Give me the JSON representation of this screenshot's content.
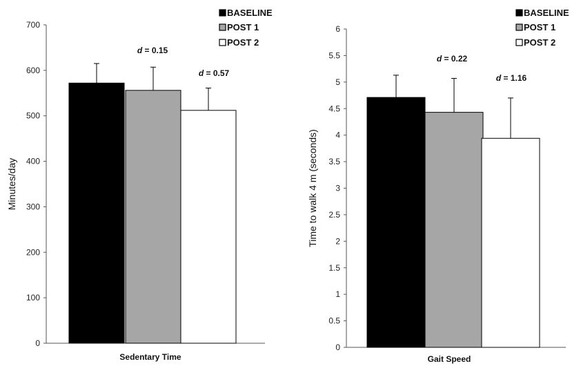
{
  "chart_data": [
    {
      "type": "bar",
      "categories": [
        "BASELINE",
        "POST 1",
        "POST 2"
      ],
      "values": [
        572,
        556,
        512
      ],
      "errors": [
        43,
        51,
        49
      ],
      "colors": [
        "#000000",
        "#a6a6a6",
        "#ffffff"
      ],
      "xlabel": "Sedentary Time",
      "ylabel": "Minutes/day",
      "ylim": [
        0,
        700
      ],
      "yticks": [
        "0",
        "100",
        "200",
        "300",
        "400",
        "500",
        "600",
        "700"
      ],
      "annotations": [
        {
          "prefix": "d",
          "text": " = 0.15"
        },
        {
          "prefix": "d",
          "text": " = 0.57"
        }
      ],
      "legend": {
        "placement": "top-right",
        "items": [
          {
            "label": "BASELINE",
            "color": "#000000"
          },
          {
            "label": "POST 1",
            "color": "#a6a6a6"
          },
          {
            "label": "POST 2",
            "color": "#ffffff"
          }
        ]
      },
      "grid": false
    },
    {
      "type": "bar",
      "categories": [
        "BASELINE",
        "POST 1",
        "POST 2"
      ],
      "values": [
        4.71,
        4.43,
        3.94
      ],
      "errors": [
        0.42,
        0.64,
        0.76
      ],
      "colors": [
        "#000000",
        "#a6a6a6",
        "#ffffff"
      ],
      "xlabel": "Gait Speed",
      "ylabel": "Time to walk 4 m (seconds)",
      "ylim": [
        0,
        6
      ],
      "yticks": [
        "0",
        "0.5",
        "1",
        "1.5",
        "2",
        "2.5",
        "3",
        "3.5",
        "4",
        "4.5",
        "5",
        "5.5",
        "6"
      ],
      "annotations": [
        {
          "prefix": "d",
          "text": " = 0.22"
        },
        {
          "prefix": "d",
          "text": " = 1.16"
        }
      ],
      "legend": {
        "placement": "top-right",
        "items": [
          {
            "label": "BASELINE",
            "color": "#000000"
          },
          {
            "label": "POST 1",
            "color": "#a6a6a6"
          },
          {
            "label": "POST 2",
            "color": "#ffffff"
          }
        ]
      },
      "grid": false
    }
  ]
}
